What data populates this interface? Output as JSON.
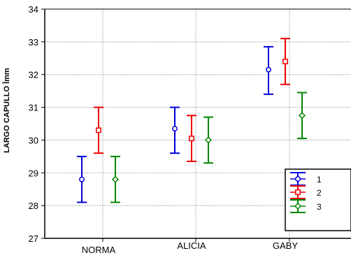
{
  "chart_data": {
    "type": "errorbar",
    "title": "",
    "xlabel": "",
    "ylabel": "LARGO CAPULLO l̄mm",
    "ylim": [
      27,
      34
    ],
    "yticks": [
      27,
      28,
      29,
      30,
      31,
      32,
      33,
      34
    ],
    "grid": true,
    "legend_position": "bottom-right",
    "categories": [
      "NORMA",
      "ALICIA",
      "GABY"
    ],
    "series": [
      {
        "name": "1",
        "color": "#0000dd",
        "marker": "circle",
        "mean": [
          28.8,
          30.35,
          32.15
        ],
        "lower": [
          28.1,
          29.6,
          31.4
        ],
        "upper": [
          29.5,
          31.0,
          32.85
        ]
      },
      {
        "name": "2",
        "color": "#ee0000",
        "marker": "square",
        "mean": [
          30.3,
          30.05,
          32.4
        ],
        "lower": [
          29.6,
          29.35,
          31.7
        ],
        "upper": [
          31.0,
          30.75,
          33.1
        ]
      },
      {
        "name": "3",
        "color": "#008800",
        "marker": "diamond",
        "mean": [
          28.8,
          30.0,
          30.75
        ],
        "lower": [
          28.1,
          29.3,
          30.05
        ],
        "upper": [
          29.5,
          30.7,
          31.45
        ]
      }
    ]
  }
}
